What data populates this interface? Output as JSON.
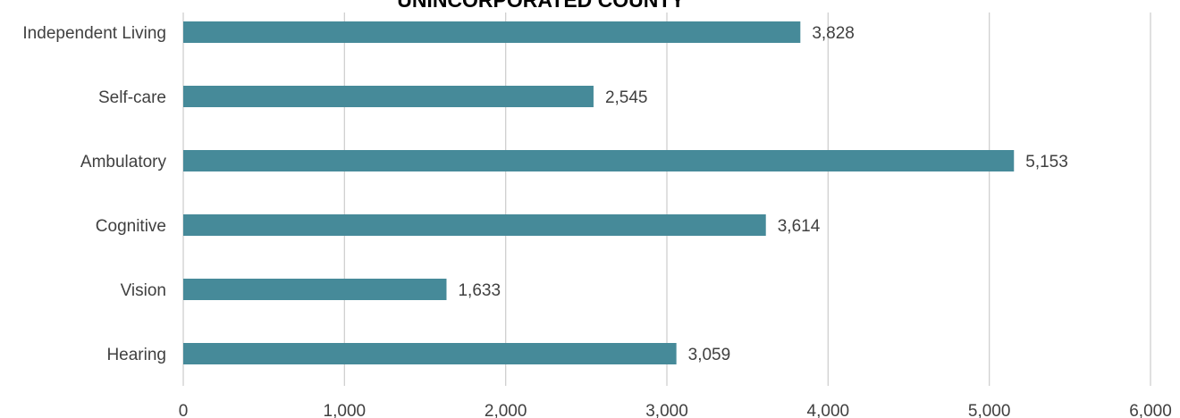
{
  "chart_data": {
    "type": "bar",
    "orientation": "horizontal",
    "title": "UNINCORPORATED COUNTY",
    "categories": [
      "Independent Living",
      "Self-care",
      "Ambulatory",
      "Cognitive",
      "Vision",
      "Hearing"
    ],
    "values": [
      3828,
      2545,
      5153,
      3614,
      1633,
      3059
    ],
    "value_labels": [
      "3,828",
      "2,545",
      "5,153",
      "3,614",
      "1,633",
      "3,059"
    ],
    "color": "#468a99",
    "xlim": [
      0,
      6000
    ],
    "xticks": [
      0,
      {
        "value": 1000,
        "label": "1,000"
      },
      {
        "value": 2000,
        "label": "2,000"
      },
      {
        "value": 3000,
        "label": "3,000"
      },
      {
        "value": 4000,
        "label": "4,000"
      },
      {
        "value": 5000,
        "label": "5,000"
      },
      {
        "value": 6000,
        "label": "6,000"
      }
    ],
    "grid": true
  }
}
